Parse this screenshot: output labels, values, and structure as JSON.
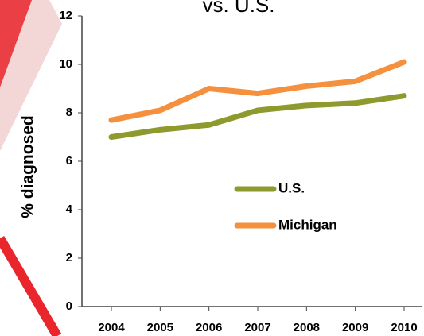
{
  "chart_data": {
    "type": "line",
    "title": "vs. U.S.",
    "y_label": "% diagnosed",
    "categories": [
      "2004",
      "2005",
      "2006",
      "2007",
      "2008",
      "2009",
      "2010"
    ],
    "series": [
      {
        "name": "U.S.",
        "color": "#8f9a2e",
        "values": [
          7.0,
          7.3,
          7.5,
          8.1,
          8.3,
          8.4,
          8.7
        ]
      },
      {
        "name": "Michigan",
        "color": "#f5913e",
        "values": [
          7.7,
          8.1,
          9.0,
          8.8,
          9.1,
          9.3,
          10.1
        ]
      }
    ],
    "ylim": [
      0,
      12
    ],
    "yticks": [
      0,
      2,
      4,
      6,
      8,
      10,
      12
    ],
    "grid": false,
    "legend": "center"
  }
}
